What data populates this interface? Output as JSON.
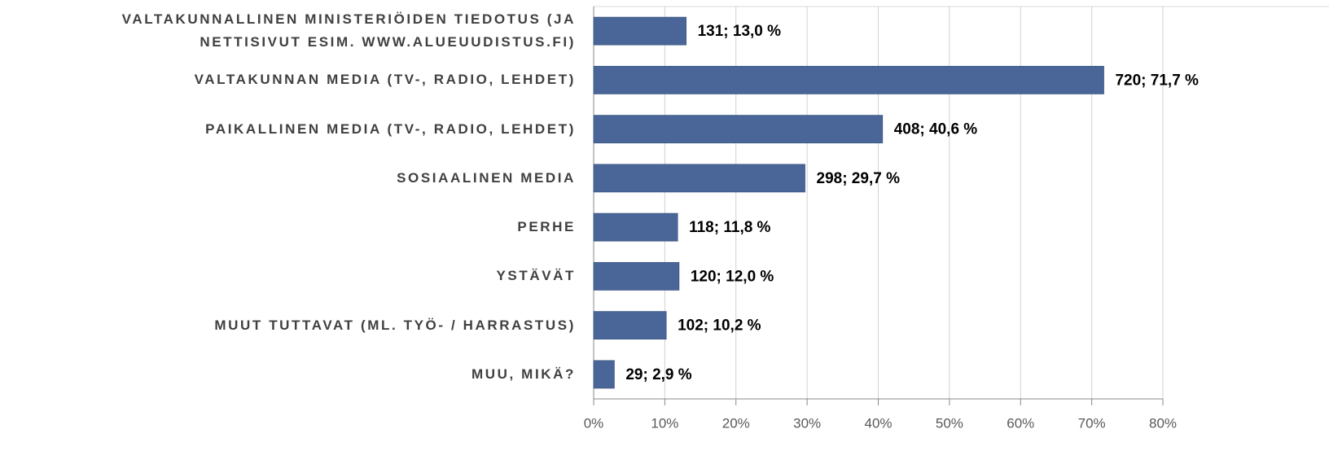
{
  "chart_data": {
    "type": "bar",
    "orientation": "horizontal",
    "categories": [
      "VALTAKUNNALLINEN MINISTERIÖIDEN TIEDOTUS (JA\nNETTISIVUT ESIM. WWW.ALUEUUDISTUS.FI)",
      "VALTAKUNNAN MEDIA (TV-, RADIO, LEHDET)",
      "PAIKALLINEN MEDIA (TV-, RADIO, LEHDET)",
      "SOSIAALINEN MEDIA",
      "PERHE",
      "YSTÄVÄT",
      "MUUT TUTTAVAT (ML. TYÖ- / HARRASTUS)",
      "MUU, MIKÄ?"
    ],
    "values": [
      13.0,
      71.7,
      40.6,
      29.7,
      11.8,
      12.0,
      10.2,
      2.9
    ],
    "value_labels": [
      "131; 13,0 %",
      "720; 71,7 %",
      "408; 40,6 %",
      "298; 29,7 %",
      "118; 11,8 %",
      "120; 12,0 %",
      "102; 10,2 %",
      "29; 2,9 %"
    ],
    "color": "#4a6699",
    "xlim": [
      0,
      80
    ],
    "xticks": [
      {
        "value": 0,
        "label": "0%"
      },
      {
        "value": 10,
        "label": "10%"
      },
      {
        "value": 20,
        "label": "20%"
      },
      {
        "value": 30,
        "label": "30%"
      },
      {
        "value": 40,
        "label": "40%"
      },
      {
        "value": 50,
        "label": "50%"
      },
      {
        "value": 60,
        "label": "60%"
      },
      {
        "value": 70,
        "label": "70%"
      },
      {
        "value": 80,
        "label": "80%"
      }
    ],
    "grid": true
  }
}
